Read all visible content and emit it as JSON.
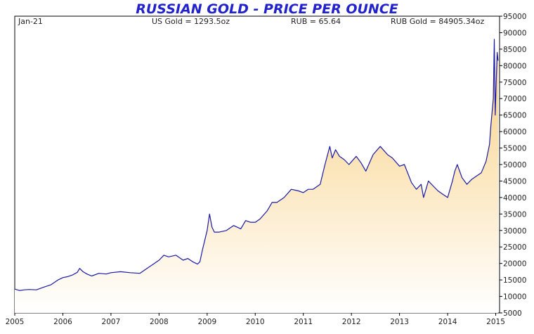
{
  "chart_data": {
    "type": "area",
    "title": "RUSSIAN GOLD - PRICE PER OUNCE",
    "info": {
      "date": "Jan-21",
      "us_gold": "US Gold = 1293.5oz",
      "rub": "RUB = 65.64",
      "rub_gold": "RUB Gold = 84905.34oz"
    },
    "xlabel": "",
    "ylabel": "",
    "x_ticks": [
      "2005",
      "2006",
      "2007",
      "2008",
      "2009",
      "2010",
      "2011",
      "2012",
      "2013",
      "2014",
      "2015"
    ],
    "y_ticks": [
      "5000",
      "10000",
      "15000",
      "20000",
      "25000",
      "30000",
      "35000",
      "40000",
      "45000",
      "50000",
      "55000",
      "60000",
      "65000",
      "70000",
      "75000",
      "80000",
      "85000",
      "90000",
      "95000"
    ],
    "xlim": [
      2005.0,
      2015.08
    ],
    "ylim": [
      5000,
      95000
    ],
    "grid": false,
    "colors": {
      "line": "#1a1aa6",
      "fill_top": "#f8cf7f",
      "fill_bottom": "#ffffff",
      "title": "#2222cc"
    },
    "series": [
      {
        "x": [
          2005.0,
          2005.1,
          2005.2,
          2005.3,
          2005.45,
          2005.6,
          2005.75,
          2005.9,
          2006.0,
          2006.1,
          2006.2,
          2006.3,
          2006.35,
          2006.42,
          2006.5,
          2006.6,
          2006.75,
          2006.9,
          2007.0,
          2007.2,
          2007.4,
          2007.6,
          2007.75,
          2007.9,
          2008.0,
          2008.1,
          2008.2,
          2008.35,
          2008.5,
          2008.6,
          2008.7,
          2008.8,
          2008.85,
          2008.9,
          2009.0,
          2009.05,
          2009.1,
          2009.15,
          2009.25,
          2009.4,
          2009.55,
          2009.7,
          2009.8,
          2009.9,
          2010.0,
          2010.1,
          2010.25,
          2010.35,
          2010.45,
          2010.6,
          2010.75,
          2010.9,
          2011.0,
          2011.1,
          2011.2,
          2011.35,
          2011.45,
          2011.55,
          2011.6,
          2011.67,
          2011.75,
          2011.85,
          2011.95,
          2012.1,
          2012.2,
          2012.3,
          2012.45,
          2012.6,
          2012.75,
          2012.85,
          2013.0,
          2013.1,
          2013.25,
          2013.35,
          2013.45,
          2013.5,
          2013.6,
          2013.7,
          2013.8,
          2013.9,
          2014.0,
          2014.1,
          2014.15,
          2014.2,
          2014.3,
          2014.4,
          2014.5,
          2014.6,
          2014.7,
          2014.8,
          2014.87,
          2014.9,
          2014.95,
          2014.97,
          2014.99,
          2015.01,
          2015.03,
          2015.05
        ],
        "values": [
          12200,
          11800,
          12000,
          12100,
          12000,
          12800,
          13500,
          15000,
          15700,
          16000,
          16500,
          17300,
          18500,
          17500,
          16800,
          16200,
          17000,
          16800,
          17200,
          17500,
          17200,
          17000,
          18500,
          20000,
          21000,
          22500,
          22000,
          22500,
          21000,
          21500,
          20500,
          19800,
          20500,
          24000,
          30000,
          35000,
          31000,
          29500,
          29500,
          30000,
          31500,
          30500,
          33000,
          32500,
          32500,
          33500,
          36000,
          38500,
          38500,
          40000,
          42500,
          42000,
          41500,
          42500,
          42500,
          44000,
          50000,
          55500,
          52000,
          54500,
          52500,
          51500,
          50000,
          52500,
          50500,
          48000,
          53000,
          55500,
          53000,
          52000,
          49500,
          50000,
          44500,
          42500,
          44000,
          40000,
          45000,
          43500,
          42000,
          41000,
          40000,
          45000,
          48000,
          50000,
          46000,
          44000,
          45500,
          46500,
          47500,
          51000,
          56000,
          62000,
          70000,
          88000,
          65000,
          75000,
          84000,
          81500
        ]
      }
    ]
  }
}
